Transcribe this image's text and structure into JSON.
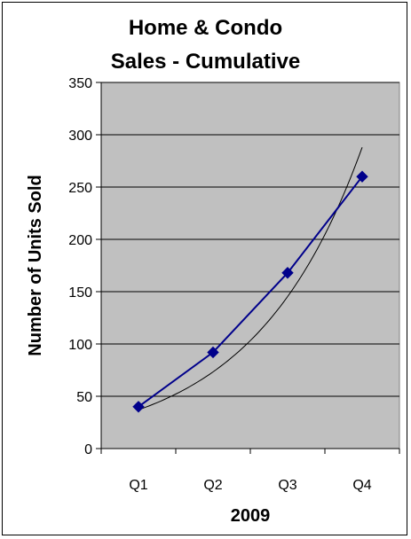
{
  "chart_data": {
    "type": "line",
    "title_lines": [
      "Home & Condo",
      "Sales - Cumulative"
    ],
    "xlabel": "2009",
    "ylabel": "Number of Units Sold",
    "categories": [
      "Q1",
      "Q2",
      "Q3",
      "Q4"
    ],
    "series": [
      {
        "values": [
          40,
          92,
          168,
          260
        ],
        "color": "#00008B",
        "marker": "diamond"
      }
    ],
    "trendline": {
      "type": "exponential",
      "color": "#000000",
      "start": 37,
      "end": 288
    },
    "ylim": [
      0,
      350
    ],
    "yticks": [
      0,
      50,
      100,
      150,
      200,
      250,
      300,
      350
    ],
    "grid": true,
    "plot_background": "#C0C0C0",
    "legend": "none"
  }
}
